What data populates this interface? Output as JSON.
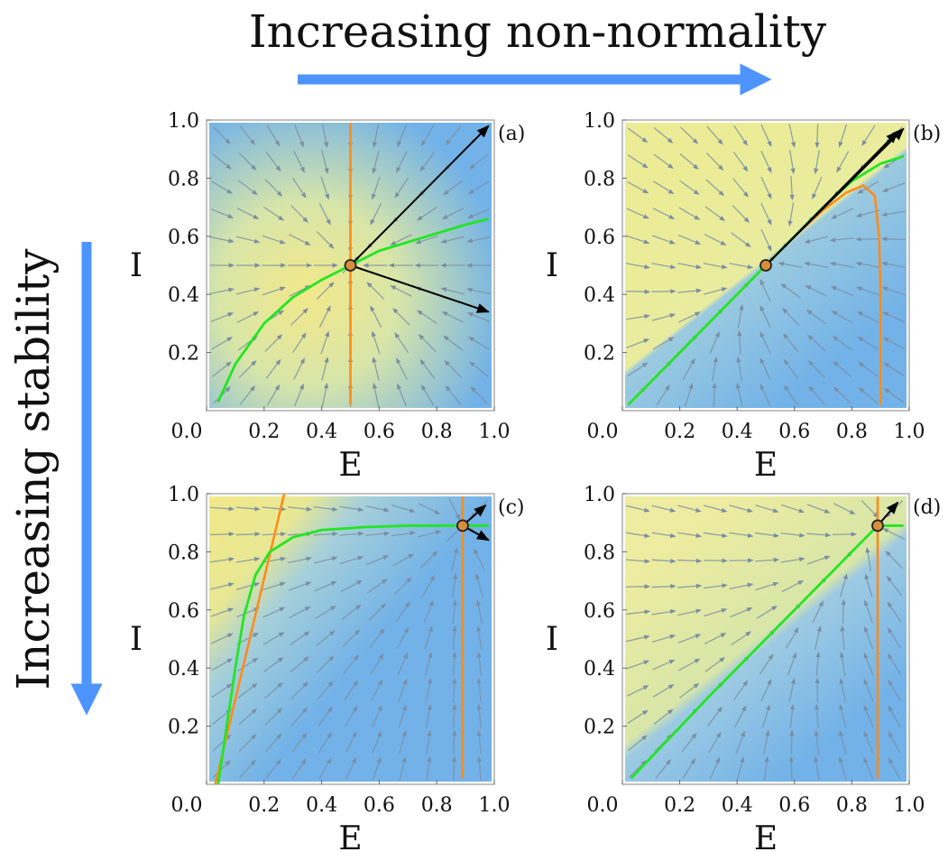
{
  "figure": {
    "top_label": "Increasing non-normality",
    "side_label": "Increasing stability",
    "arrow_color": "#4d94ff"
  },
  "colors": {
    "stream": "#7b8ea3",
    "e_nullcline": "#ff8c1a",
    "i_nullcline": "#22e622",
    "eigvec": "#000000",
    "fixed_point": "#d98f3a",
    "bg_stable": "#72b2e8",
    "bg_mid": "#f2e88a",
    "bg_unstable": "#f2a0b4"
  },
  "chart_data": [
    {
      "type": "streamplot",
      "panel": "(a)",
      "xlabel": "E",
      "ylabel": "I",
      "xlim": [
        0,
        1
      ],
      "ylim": [
        0,
        1
      ],
      "xticks": [
        "0.0",
        "0.2",
        "0.4",
        "0.6",
        "0.8",
        "1.0"
      ],
      "yticks": [
        "0.2",
        "0.4",
        "0.6",
        "0.8",
        "1.0"
      ],
      "fixed_points": [
        [
          0.5,
          0.5
        ]
      ],
      "e_nullcline_vertical_at": 0.5,
      "e_nullcline_diagonal": null,
      "i_nullcline": [
        [
          0.04,
          0.03
        ],
        [
          0.1,
          0.16
        ],
        [
          0.2,
          0.3
        ],
        [
          0.3,
          0.39
        ],
        [
          0.4,
          0.45
        ],
        [
          0.5,
          0.5
        ],
        [
          0.6,
          0.55
        ],
        [
          0.7,
          0.58
        ],
        [
          0.8,
          0.61
        ],
        [
          0.9,
          0.64
        ],
        [
          0.98,
          0.66
        ]
      ],
      "eigenvectors": [
        [
          [
            0.5,
            0.5
          ],
          [
            0.98,
            0.98
          ]
        ],
        [
          [
            0.5,
            0.5
          ],
          [
            0.98,
            0.34
          ]
        ]
      ]
    },
    {
      "type": "streamplot",
      "panel": "(b)",
      "xlabel": "E",
      "ylabel": "I",
      "xlim": [
        0,
        1
      ],
      "ylim": [
        0,
        1
      ],
      "xticks": [
        "0.0",
        "0.2",
        "0.4",
        "0.6",
        "0.8",
        "1.0"
      ],
      "yticks": [
        "0.2",
        "0.4",
        "0.6",
        "0.8",
        "1.0"
      ],
      "fixed_points": [
        [
          0.5,
          0.5
        ]
      ],
      "e_nullcline_vertical_at": null,
      "e_nullcline_curve": [
        [
          0.02,
          0.02
        ],
        [
          0.2,
          0.2
        ],
        [
          0.4,
          0.4
        ],
        [
          0.5,
          0.5
        ],
        [
          0.6,
          0.6
        ],
        [
          0.7,
          0.69
        ],
        [
          0.78,
          0.75
        ],
        [
          0.84,
          0.775
        ],
        [
          0.88,
          0.74
        ],
        [
          0.895,
          0.6
        ],
        [
          0.9,
          0.4
        ],
        [
          0.9,
          0.02
        ]
      ],
      "i_nullcline": [
        [
          0.02,
          0.02
        ],
        [
          0.2,
          0.2
        ],
        [
          0.4,
          0.4
        ],
        [
          0.5,
          0.5
        ],
        [
          0.6,
          0.6
        ],
        [
          0.7,
          0.7
        ],
        [
          0.8,
          0.79
        ],
        [
          0.9,
          0.85
        ],
        [
          0.98,
          0.875
        ]
      ],
      "eigenvectors": [
        [
          [
            0.5,
            0.5
          ],
          [
            0.98,
            0.97
          ]
        ],
        [
          [
            0.5,
            0.5
          ],
          [
            0.96,
            0.96
          ]
        ]
      ]
    },
    {
      "type": "streamplot",
      "panel": "(c)",
      "xlabel": "E",
      "ylabel": "I",
      "xlim": [
        0,
        1
      ],
      "ylim": [
        0,
        1
      ],
      "xticks": [
        "0.0",
        "0.2",
        "0.4",
        "0.6",
        "0.8",
        "1.0"
      ],
      "yticks": [
        "0.2",
        "0.4",
        "0.6",
        "0.8",
        "1.0"
      ],
      "fixed_points": [
        [
          0.89,
          0.89
        ]
      ],
      "e_nullcline_vertical_at": 0.89,
      "e_nullcline_diagonal": [
        [
          0.03,
          0.0
        ],
        [
          0.27,
          1.0
        ]
      ],
      "i_nullcline": [
        [
          0.04,
          0.0
        ],
        [
          0.07,
          0.2
        ],
        [
          0.1,
          0.4
        ],
        [
          0.13,
          0.58
        ],
        [
          0.17,
          0.72
        ],
        [
          0.22,
          0.8
        ],
        [
          0.3,
          0.85
        ],
        [
          0.4,
          0.875
        ],
        [
          0.55,
          0.885
        ],
        [
          0.7,
          0.89
        ],
        [
          0.89,
          0.89
        ],
        [
          0.98,
          0.89
        ]
      ],
      "eigenvectors": [
        [
          [
            0.89,
            0.89
          ],
          [
            0.97,
            0.96
          ]
        ],
        [
          [
            0.89,
            0.89
          ],
          [
            0.98,
            0.84
          ]
        ]
      ]
    },
    {
      "type": "streamplot",
      "panel": "(d)",
      "xlabel": "E",
      "ylabel": "I",
      "xlim": [
        0,
        1
      ],
      "ylim": [
        0,
        1
      ],
      "xticks": [
        "0.0",
        "0.2",
        "0.4",
        "0.6",
        "0.8",
        "1.0"
      ],
      "yticks": [
        "0.2",
        "0.4",
        "0.6",
        "0.8",
        "1.0"
      ],
      "fixed_points": [
        [
          0.89,
          0.89
        ]
      ],
      "e_nullcline_vertical_at": 0.89,
      "e_nullcline_diagonal": null,
      "i_nullcline": [
        [
          0.03,
          0.02
        ],
        [
          0.3,
          0.3
        ],
        [
          0.6,
          0.6
        ],
        [
          0.89,
          0.89
        ],
        [
          0.98,
          0.89
        ]
      ],
      "eigenvectors": [
        [
          [
            0.89,
            0.89
          ],
          [
            0.96,
            0.97
          ]
        ]
      ]
    }
  ]
}
